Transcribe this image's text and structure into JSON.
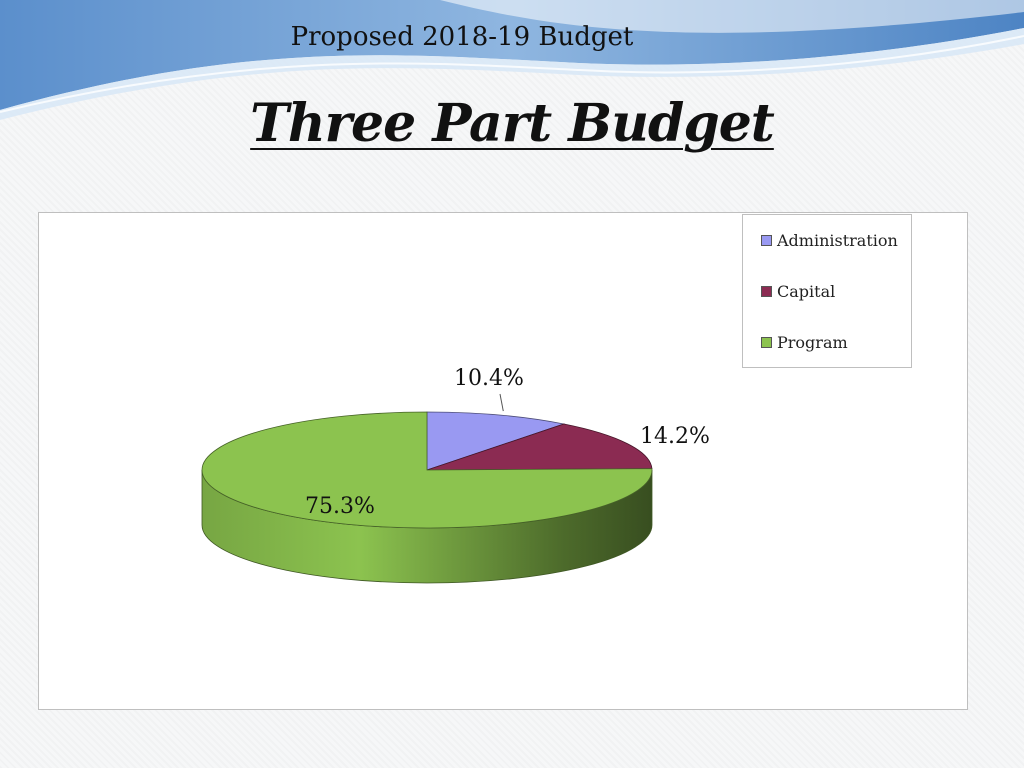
{
  "slide": {
    "title": "Three Part Budget"
  },
  "chart_data": {
    "type": "pie",
    "title": "Proposed 2018-19 Budget",
    "categories": [
      "Administration",
      "Capital",
      "Program"
    ],
    "values": [
      10.4,
      14.2,
      75.3
    ],
    "labels": [
      "10.4%",
      "14.2%",
      "75.3%"
    ],
    "colors": [
      "#9999f2",
      "#8b2b52",
      "#8cc34f"
    ],
    "legend_position": "right",
    "style": "3d"
  }
}
